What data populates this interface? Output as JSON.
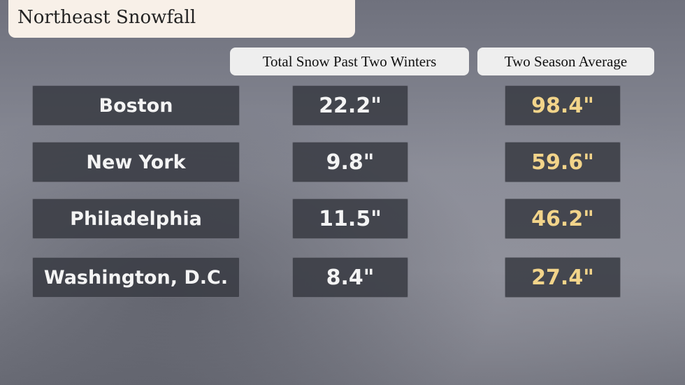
{
  "title": "Northeast Snowfall",
  "table": {
    "columns": [
      "Total Snow Past Two Winters",
      "Two Season Average"
    ],
    "rows": [
      [
        "Boston",
        "22.2\"",
        "98.4\""
      ],
      [
        "New York",
        "9.8\"",
        "59.6\""
      ],
      [
        "Philadelphia",
        "11.5\"",
        "46.2\""
      ],
      [
        "Washington, D.C.",
        "8.4\"",
        "27.4\""
      ]
    ]
  }
}
